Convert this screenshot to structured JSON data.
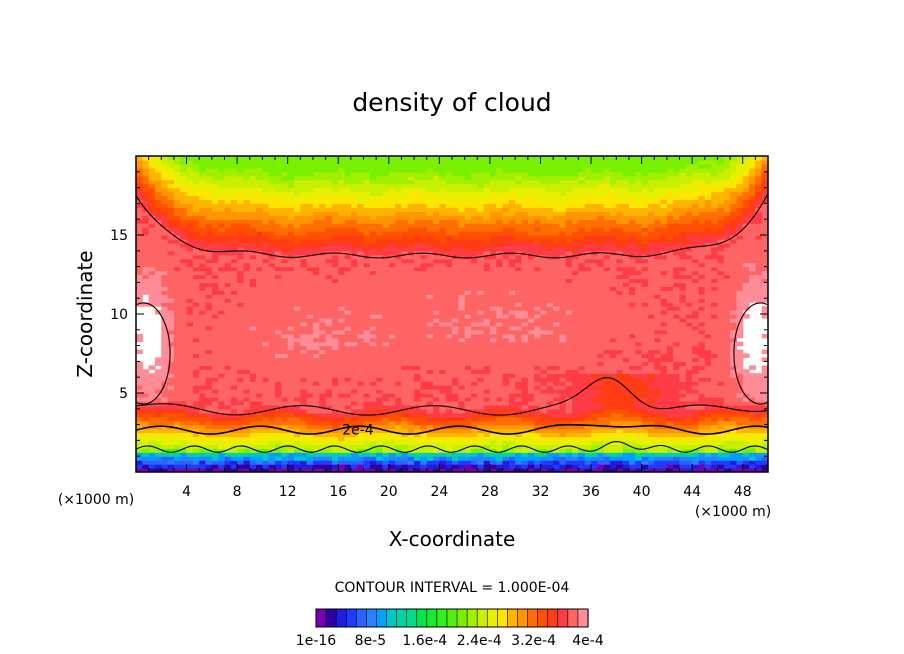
{
  "chart_data": {
    "type": "heatmap",
    "title": "density of cloud",
    "xlabel": "X-coordinate",
    "ylabel": "Z-coordinate",
    "x_unit": "(×1000 m)",
    "y_unit": "(×1000 m)",
    "xlim": [
      0,
      50
    ],
    "ylim": [
      0,
      20
    ],
    "x_ticks": [
      4,
      8,
      12,
      16,
      20,
      24,
      28,
      32,
      36,
      40,
      44,
      48
    ],
    "x_tick_labels": [
      "4",
      "8",
      "12",
      "16",
      "20",
      "24",
      "28",
      "32",
      "36",
      "40",
      "44",
      "48"
    ],
    "y_ticks": [
      5,
      10,
      15
    ],
    "y_tick_labels": [
      "5",
      "10",
      "15"
    ],
    "contour_interval_text": "CONTOUR INTERVAL = 1.000E-04",
    "contour_labels": [
      {
        "text": "2e-4",
        "x": 16.0,
        "y": 2.7
      }
    ],
    "colorbar": {
      "min": 0,
      "max": 0.0004,
      "n_levels": 27,
      "tick_labels": [
        "1e-16",
        "8e-5",
        "1.6e-4",
        "2.4e-4",
        "3.2e-4",
        "4e-4"
      ],
      "colors": [
        "#7800b4",
        "#3200a0",
        "#1e1edc",
        "#1e3cff",
        "#2864ff",
        "#2882ff",
        "#00a0ff",
        "#00c8c8",
        "#00d2aa",
        "#00dc8c",
        "#00e650",
        "#14eb32",
        "#32f01e",
        "#50f00a",
        "#78f000",
        "#a0f000",
        "#c8f000",
        "#e6f000",
        "#ffe600",
        "#ffb400",
        "#ff9600",
        "#ff6e00",
        "#ff5000",
        "#ff3c14",
        "#ff3c46",
        "#ff6464",
        "#ff8c96"
      ]
    }
  }
}
